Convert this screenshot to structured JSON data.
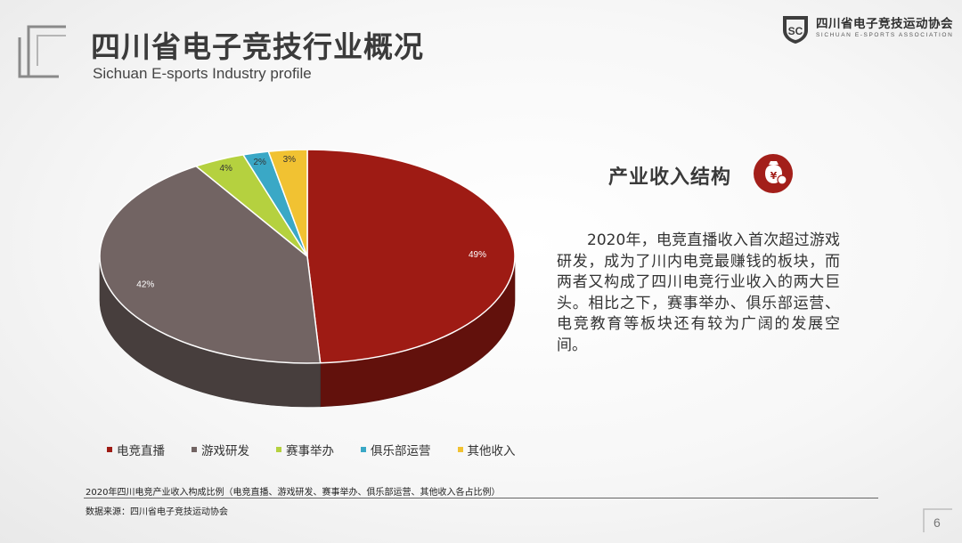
{
  "header": {
    "title": "四川省电子竞技行业概况",
    "subtitle": "Sichuan E-sports Industry profile"
  },
  "logo": {
    "name_cn": "四川省电子竞技运动协会",
    "name_en": "SICHUAN E-SPORTS ASSOCIATION",
    "icon": "esports-association-shield-icon"
  },
  "section": {
    "title": "产业收入结构",
    "icon": "money-bag-yuan-icon",
    "paragraph": "2020年，电竞直播收入首次超过游戏研发，成为了川内电竞最赚钱的板块，而两者又构成了四川电竞行业收入的两大巨头。相比之下，赛事举办、俱乐部运营、电竞教育等板块还有较为广阔的发展空间。"
  },
  "chart_data": {
    "type": "pie",
    "style": "3d",
    "categories": [
      "电竞直播",
      "游戏研发",
      "赛事举办",
      "俱乐部运营",
      "其他收入"
    ],
    "values": [
      49,
      42,
      4,
      2,
      3
    ],
    "labels": [
      "49%",
      "42%",
      "4%",
      "2%",
      "3%"
    ],
    "colors": [
      "#9e1b14",
      "#726463",
      "#b5d13f",
      "#3aa8c6",
      "#f1c232"
    ],
    "legend_position": "bottom"
  },
  "footer": {
    "caption": "2020年四川电竞产业收入构成比例（电竞直播、游戏研发、赛事举办、俱乐部运营、其他收入各占比例）",
    "source": "数据来源：四川省电子竞技运动协会",
    "page": "6"
  }
}
